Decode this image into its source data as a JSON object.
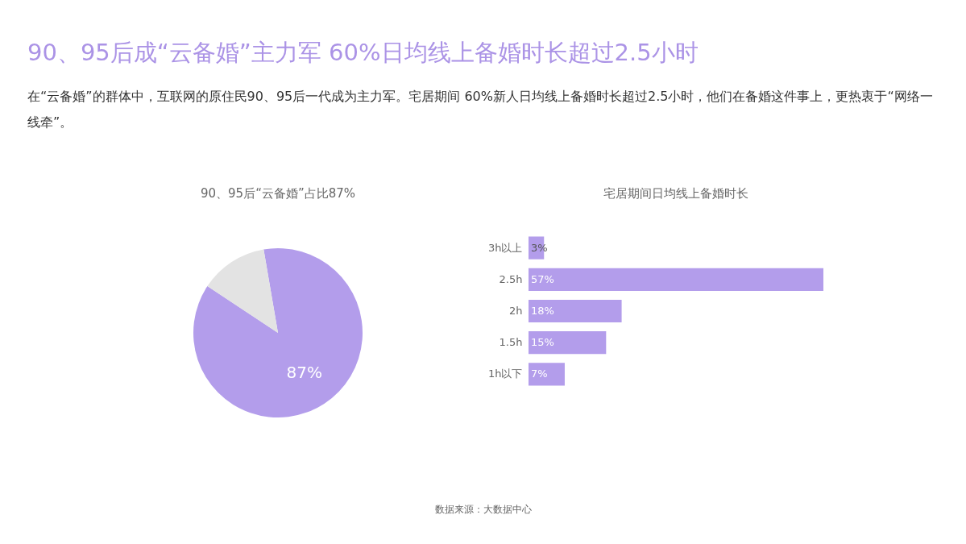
{
  "chart_data": [
    {
      "type": "other",
      "title": "90、95后成“云备婚”主力军  60%日均线上备婚时长超过2.5小时",
      "subtitle": "在“云备婚”的群体中，互联网的原住民90、95后一代成为主力军。宅居期间 60%新人日均线上备婚时长超过2.5小时，他们在备婚这件事上，更热衷于“网络一线牵”。",
      "annotations": [
        "数据来源：大数据中心"
      ]
    },
    {
      "type": "pie",
      "title": "90、95后“云备婚”占比87%",
      "categories": [
        null,
        null
      ],
      "values": [
        87,
        13
      ],
      "colors": [
        "#b39deb",
        "#e3e3e3"
      ],
      "value_labels": [
        "87%",
        null
      ]
    },
    {
      "type": "bar",
      "title": "宅居期间日均线上备婚时长",
      "orientation": "horizontal",
      "categories": [
        "3h以上",
        "2.5h",
        "2h",
        "1.5h",
        "1h以下"
      ],
      "values": [
        3,
        57,
        18,
        15,
        7
      ],
      "color": "#b39deb",
      "value_labels": [
        "3%",
        "57%",
        "18%",
        "15%",
        "7%"
      ]
    }
  ]
}
